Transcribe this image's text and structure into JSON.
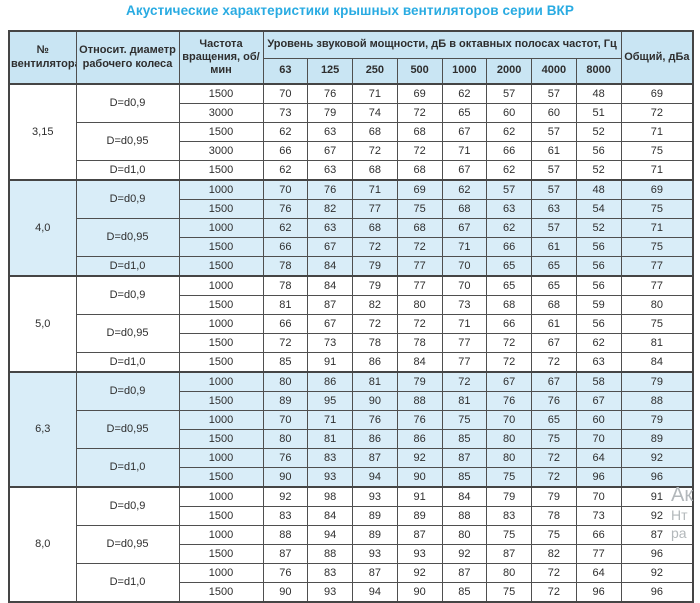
{
  "title": "Акустические характеристики крышных вентиляторов серии ВКР",
  "colors": {
    "accent": "#29abe2",
    "header_bg": "#c9e5f3",
    "shaded_row_bg": "#d9edf8",
    "border": "#4f4f4f"
  },
  "watermark_fragments": [
    "Ак",
    "Нт",
    "ра"
  ],
  "table": {
    "col_fan": "№ вентилятора",
    "col_diameter": "Относит. диаметр рабочего колеса",
    "col_rpm": "Частота вращения, об/мин",
    "col_spl_group": "Уровень звуковой мощности, дБ в октавных полосах частот, Гц",
    "freq_labels": [
      "63",
      "125",
      "250",
      "500",
      "1000",
      "2000",
      "4000",
      "8000"
    ],
    "col_total": "Общий, дБа",
    "sections": [
      {
        "fan": "3,15",
        "shaded": false,
        "groups": [
          {
            "d": "D=d0,9",
            "rows": [
              {
                "rpm": "1500",
                "vals": [
                  70,
                  76,
                  71,
                  69,
                  62,
                  57,
                  57,
                  48
                ],
                "total": 69
              },
              {
                "rpm": "3000",
                "vals": [
                  73,
                  79,
                  74,
                  72,
                  65,
                  60,
                  60,
                  51
                ],
                "total": 72
              }
            ]
          },
          {
            "d": "D=d0,95",
            "rows": [
              {
                "rpm": "1500",
                "vals": [
                  62,
                  63,
                  68,
                  68,
                  67,
                  62,
                  57,
                  52
                ],
                "total": 71
              },
              {
                "rpm": "3000",
                "vals": [
                  66,
                  67,
                  72,
                  72,
                  71,
                  66,
                  61,
                  56
                ],
                "total": 75
              }
            ]
          },
          {
            "d": "D=d1,0",
            "rows": [
              {
                "rpm": "1500",
                "vals": [
                  62,
                  63,
                  68,
                  68,
                  67,
                  62,
                  57,
                  52
                ],
                "total": 71
              }
            ]
          }
        ]
      },
      {
        "fan": "4,0",
        "shaded": true,
        "groups": [
          {
            "d": "D=d0,9",
            "rows": [
              {
                "rpm": "1000",
                "vals": [
                  70,
                  76,
                  71,
                  69,
                  62,
                  57,
                  57,
                  48
                ],
                "total": 69
              },
              {
                "rpm": "1500",
                "vals": [
                  76,
                  82,
                  77,
                  75,
                  68,
                  63,
                  63,
                  54
                ],
                "total": 75
              }
            ]
          },
          {
            "d": "D=d0,95",
            "rows": [
              {
                "rpm": "1000",
                "vals": [
                  62,
                  63,
                  68,
                  68,
                  67,
                  62,
                  57,
                  52
                ],
                "total": 71
              },
              {
                "rpm": "1500",
                "vals": [
                  66,
                  67,
                  72,
                  72,
                  71,
                  66,
                  61,
                  56
                ],
                "total": 75
              }
            ]
          },
          {
            "d": "D=d1,0",
            "rows": [
              {
                "rpm": "1500",
                "vals": [
                  78,
                  84,
                  79,
                  77,
                  70,
                  65,
                  65,
                  56
                ],
                "total": 77
              }
            ]
          }
        ]
      },
      {
        "fan": "5,0",
        "shaded": false,
        "groups": [
          {
            "d": "D=d0,9",
            "rows": [
              {
                "rpm": "1000",
                "vals": [
                  78,
                  84,
                  79,
                  77,
                  70,
                  65,
                  65,
                  56
                ],
                "total": 77
              },
              {
                "rpm": "1500",
                "vals": [
                  81,
                  87,
                  82,
                  80,
                  73,
                  68,
                  68,
                  59
                ],
                "total": 80
              }
            ]
          },
          {
            "d": "D=d0,95",
            "rows": [
              {
                "rpm": "1000",
                "vals": [
                  66,
                  67,
                  72,
                  72,
                  71,
                  66,
                  61,
                  56
                ],
                "total": 75
              },
              {
                "rpm": "1500",
                "vals": [
                  72,
                  73,
                  78,
                  78,
                  77,
                  72,
                  67,
                  62
                ],
                "total": 81
              }
            ]
          },
          {
            "d": "D=d1,0",
            "rows": [
              {
                "rpm": "1500",
                "vals": [
                  85,
                  91,
                  86,
                  84,
                  77,
                  72,
                  72,
                  63
                ],
                "total": 84
              }
            ]
          }
        ]
      },
      {
        "fan": "6,3",
        "shaded": true,
        "groups": [
          {
            "d": "D=d0,9",
            "rows": [
              {
                "rpm": "1000",
                "vals": [
                  80,
                  86,
                  81,
                  79,
                  72,
                  67,
                  67,
                  58
                ],
                "total": 79
              },
              {
                "rpm": "1500",
                "vals": [
                  89,
                  95,
                  90,
                  88,
                  81,
                  76,
                  76,
                  67
                ],
                "total": 88
              }
            ]
          },
          {
            "d": "D=d0,95",
            "rows": [
              {
                "rpm": "1000",
                "vals": [
                  70,
                  71,
                  76,
                  76,
                  75,
                  70,
                  65,
                  60
                ],
                "total": 79
              },
              {
                "rpm": "1500",
                "vals": [
                  80,
                  81,
                  86,
                  86,
                  85,
                  80,
                  75,
                  70
                ],
                "total": 89
              }
            ]
          },
          {
            "d": "D=d1,0",
            "rows": [
              {
                "rpm": "1000",
                "vals": [
                  76,
                  83,
                  87,
                  92,
                  87,
                  80,
                  72,
                  64
                ],
                "total": 92
              },
              {
                "rpm": "1500",
                "vals": [
                  90,
                  93,
                  94,
                  90,
                  85,
                  75,
                  72,
                  96
                ],
                "total": 96
              }
            ]
          }
        ]
      },
      {
        "fan": "8,0",
        "shaded": false,
        "groups": [
          {
            "d": "D=d0,9",
            "rows": [
              {
                "rpm": "1000",
                "vals": [
                  92,
                  98,
                  93,
                  91,
                  84,
                  79,
                  79,
                  70
                ],
                "total": 91
              },
              {
                "rpm": "1500",
                "vals": [
                  83,
                  84,
                  89,
                  89,
                  88,
                  83,
                  78,
                  73
                ],
                "total": 92
              }
            ]
          },
          {
            "d": "D=d0,95",
            "rows": [
              {
                "rpm": "1000",
                "vals": [
                  88,
                  94,
                  89,
                  87,
                  80,
                  75,
                  75,
                  66
                ],
                "total": 87
              },
              {
                "rpm": "1500",
                "vals": [
                  87,
                  88,
                  93,
                  93,
                  92,
                  87,
                  82,
                  77
                ],
                "total": 96
              }
            ]
          },
          {
            "d": "D=d1,0",
            "rows": [
              {
                "rpm": "1000",
                "vals": [
                  76,
                  83,
                  87,
                  92,
                  87,
                  80,
                  72,
                  64
                ],
                "total": 92
              },
              {
                "rpm": "1500",
                "vals": [
                  90,
                  93,
                  94,
                  90,
                  85,
                  75,
                  72,
                  96
                ],
                "total": 96
              }
            ]
          }
        ]
      }
    ]
  }
}
